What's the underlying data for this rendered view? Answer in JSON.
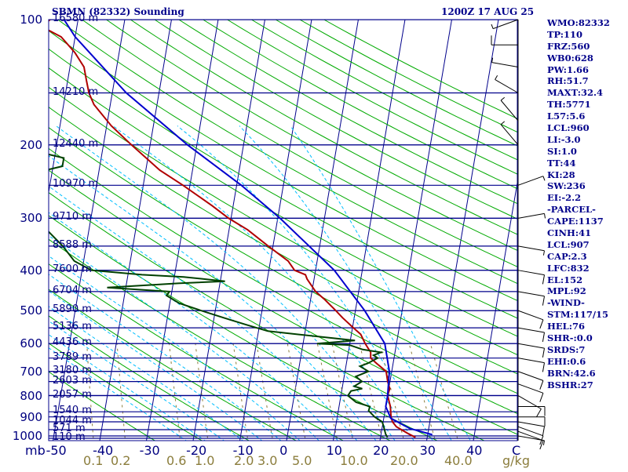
{
  "header": {
    "station": "SBMN (82332) Sounding",
    "time": "1200Z 17 AUG 25"
  },
  "indices": [
    "WMO:82332",
    "TP:110",
    "FRZ:560",
    "WB0:628",
    "PW:1.66",
    "RH:51.7",
    "MAXT:32.4",
    "TH:5771",
    "L57:5.6",
    "LCL:960",
    "LI:-3.0",
    "SI:1.0",
    "TT:44",
    "KI:28",
    "SW:236",
    "EI:-2.2",
    "-PARCEL-",
    "CAPE:1137",
    "CINH:41",
    "LCL:907",
    "CAP:2.3",
    "LFC:832",
    "EL:152",
    "MPL:92",
    "-WIND-",
    "STM:117/15",
    "HEL:76",
    "SHR-:0.0",
    "SRDS:7",
    "EHI:0.6",
    "BRN:42.6",
    "BSHR:27"
  ],
  "axes": {
    "pressure_unit": "mb",
    "mixing_ratio_unit": "g/kg",
    "temp_ticks": [
      "-50",
      "-40",
      "-30",
      "-20",
      "-10",
      "0",
      "10",
      "20",
      "30",
      "40",
      "C"
    ],
    "mixing_ratio_ticks": [
      "0.1",
      "0.2",
      "0.6",
      "1.0",
      "2.0",
      "3.0",
      "5.0",
      "10.0",
      "20.0",
      "40.0"
    ]
  },
  "colors": {
    "isobar": "#00008b",
    "isotherm": "#00008b",
    "dry_adiabat": "#00aa00",
    "moist_adiabat": "#00bfff",
    "mixing_ratio": "#8b7d3c",
    "temperature": "#b00000",
    "dewpoint": "#004000",
    "parcel": "#0000cd",
    "label": "#00008b"
  },
  "chart_data": {
    "type": "line",
    "title": "SBMN (82332) Sounding",
    "subtitle": "1200Z 17 AUG 25",
    "xlabel": "",
    "ylabel": "mb",
    "log_pressure_axis": true,
    "pressure_range": [
      1000,
      100
    ],
    "temperature_range": [
      -50,
      50
    ],
    "pressure_levels": [
      1000,
      900,
      800,
      700,
      600,
      500,
      400,
      300,
      200,
      100
    ],
    "height_labels": [
      {
        "p": 1013,
        "h": "110 m"
      },
      {
        "p": 966,
        "h": "571 m"
      },
      {
        "p": 925,
        "h": "1044 m"
      },
      {
        "p": 875,
        "h": "1540 m"
      },
      {
        "p": 800,
        "h": "2057 m"
      },
      {
        "p": 740,
        "h": "2603 m"
      },
      {
        "p": 700,
        "h": "3180 m"
      },
      {
        "p": 650,
        "h": "3789 m"
      },
      {
        "p": 600,
        "h": "4436 m"
      },
      {
        "p": 550,
        "h": "5136 m"
      },
      {
        "p": 500,
        "h": "5890 m"
      },
      {
        "p": 450,
        "h": "6704 m"
      },
      {
        "p": 400,
        "h": "7600 m"
      },
      {
        "p": 350,
        "h": "8588 m"
      },
      {
        "p": 300,
        "h": "9710 m"
      },
      {
        "p": 250,
        "h": "10970 m"
      },
      {
        "p": 200,
        "h": "12440 m"
      },
      {
        "p": 150,
        "h": "14210 m"
      },
      {
        "p": 100,
        "h": "16580 m"
      }
    ],
    "series": [
      {
        "key": "temperature",
        "points": [
          [
            1008,
            27.5
          ],
          [
            990,
            26.0
          ],
          [
            970,
            24.5
          ],
          [
            950,
            23.0
          ],
          [
            925,
            22.0
          ],
          [
            900,
            21.5
          ],
          [
            850,
            21.0
          ],
          [
            800,
            20.0
          ],
          [
            770,
            20.2
          ],
          [
            740,
            19.5
          ],
          [
            700,
            18.8
          ],
          [
            670,
            16.5
          ],
          [
            650,
            15.0
          ],
          [
            630,
            14.8
          ],
          [
            600,
            13.3
          ],
          [
            570,
            12.0
          ],
          [
            550,
            10.2
          ],
          [
            520,
            7.5
          ],
          [
            500,
            5.8
          ],
          [
            470,
            3.0
          ],
          [
            450,
            0.8
          ],
          [
            420,
            -1.5
          ],
          [
            410,
            -2.0
          ],
          [
            400,
            -4.5
          ],
          [
            380,
            -6.2
          ],
          [
            350,
            -11.0
          ],
          [
            320,
            -16.0
          ],
          [
            300,
            -20.5
          ],
          [
            280,
            -24.5
          ],
          [
            250,
            -31.5
          ],
          [
            230,
            -37.0
          ],
          [
            200,
            -44.0
          ],
          [
            180,
            -49.0
          ],
          [
            160,
            -53.5
          ],
          [
            150,
            -55.0
          ],
          [
            140,
            -56.0
          ],
          [
            130,
            -57.0
          ],
          [
            120,
            -59.5
          ],
          [
            110,
            -63.0
          ],
          [
            104,
            -67.5
          ],
          [
            100,
            -66.0
          ]
        ]
      },
      {
        "key": "dewpoint",
        "points": [
          [
            1008,
            21.5
          ],
          [
            990,
            21.0
          ],
          [
            950,
            20.3
          ],
          [
            925,
            19.8
          ],
          [
            900,
            18.0
          ],
          [
            870,
            16.5
          ],
          [
            850,
            16.6
          ],
          [
            830,
            13.5
          ],
          [
            800,
            11.5
          ],
          [
            780,
            12.0
          ],
          [
            770,
            14.3
          ],
          [
            760,
            12.5
          ],
          [
            740,
            14.0
          ],
          [
            720,
            12.5
          ],
          [
            700,
            15.0
          ],
          [
            680,
            13.0
          ],
          [
            670,
            14.5
          ],
          [
            650,
            16.5
          ],
          [
            640,
            15.5
          ],
          [
            630,
            17.0
          ],
          [
            620,
            13.0
          ],
          [
            605,
            10.0
          ],
          [
            600,
            3.0
          ],
          [
            590,
            11.0
          ],
          [
            560,
            -8.0
          ],
          [
            540,
            -13.0
          ],
          [
            520,
            -18.0
          ],
          [
            500,
            -23.0
          ],
          [
            480,
            -28.0
          ],
          [
            460,
            -31.0
          ],
          [
            450,
            -30.5
          ],
          [
            440,
            -44.0
          ],
          [
            430,
            -29.0
          ],
          [
            425,
            -19.0
          ],
          [
            415,
            -28.0
          ],
          [
            410,
            -37.0
          ],
          [
            400,
            -48.0
          ],
          [
            380,
            -52.0
          ],
          [
            350,
            -55.0
          ],
          [
            320,
            -59.0
          ],
          [
            300,
            -63.0
          ],
          [
            280,
            -66.0
          ],
          [
            250,
            -71.0
          ],
          [
            240,
            -68.0
          ],
          [
            225,
            -58.0
          ],
          [
            215,
            -58.0
          ],
          [
            210,
            -62.0
          ],
          [
            200,
            -66.0
          ],
          [
            190,
            -67.0
          ],
          [
            180,
            -71.5
          ],
          [
            170,
            -72.0
          ],
          [
            160,
            -73.0
          ],
          [
            150,
            -74.0
          ],
          [
            140,
            -76.0
          ],
          [
            130,
            -76.5
          ],
          [
            120,
            -76.0
          ],
          [
            110,
            -77.0
          ],
          [
            100,
            -79.0
          ]
        ]
      },
      {
        "key": "parcel",
        "points": [
          [
            993,
            31.0
          ],
          [
            960,
            26.0
          ],
          [
            907,
            21.5
          ],
          [
            850,
            20.0
          ],
          [
            800,
            20.0
          ],
          [
            700,
            19.5
          ],
          [
            600,
            17.5
          ],
          [
            500,
            12.0
          ],
          [
            400,
            4.0
          ],
          [
            300,
            -9.5
          ],
          [
            250,
            -19.0
          ],
          [
            200,
            -32.0
          ],
          [
            150,
            -47.0
          ],
          [
            110,
            -60.0
          ],
          [
            100,
            -63.0
          ]
        ]
      }
    ],
    "wind_barbs": [
      {
        "p": 1000,
        "dir": 100,
        "spd": 5
      },
      {
        "p": 975,
        "dir": 110,
        "spd": 10
      },
      {
        "p": 950,
        "dir": 110,
        "spd": 10
      },
      {
        "p": 925,
        "dir": 100,
        "spd": 10
      },
      {
        "p": 900,
        "dir": 90,
        "spd": 10
      },
      {
        "p": 850,
        "dir": 90,
        "spd": 10
      },
      {
        "p": 800,
        "dir": 120,
        "spd": 10
      },
      {
        "p": 750,
        "dir": 110,
        "spd": 10
      },
      {
        "p": 700,
        "dir": 110,
        "spd": 10
      },
      {
        "p": 650,
        "dir": 100,
        "spd": 10
      },
      {
        "p": 600,
        "dir": 100,
        "spd": 10
      },
      {
        "p": 550,
        "dir": 100,
        "spd": 10
      },
      {
        "p": 500,
        "dir": 110,
        "spd": 10
      },
      {
        "p": 450,
        "dir": 100,
        "spd": 10
      },
      {
        "p": 400,
        "dir": 100,
        "spd": 10
      },
      {
        "p": 350,
        "dir": 100,
        "spd": 5
      },
      {
        "p": 300,
        "dir": 80,
        "spd": 5
      },
      {
        "p": 250,
        "dir": 70,
        "spd": 5
      },
      {
        "p": 200,
        "dir": 320,
        "spd": 5
      },
      {
        "p": 175,
        "dir": 320,
        "spd": 5
      },
      {
        "p": 150,
        "dir": 300,
        "spd": 5
      },
      {
        "p": 130,
        "dir": 280,
        "spd": 5
      },
      {
        "p": 115,
        "dir": 270,
        "spd": 10
      },
      {
        "p": 100,
        "dir": 250,
        "spd": 5
      }
    ]
  }
}
